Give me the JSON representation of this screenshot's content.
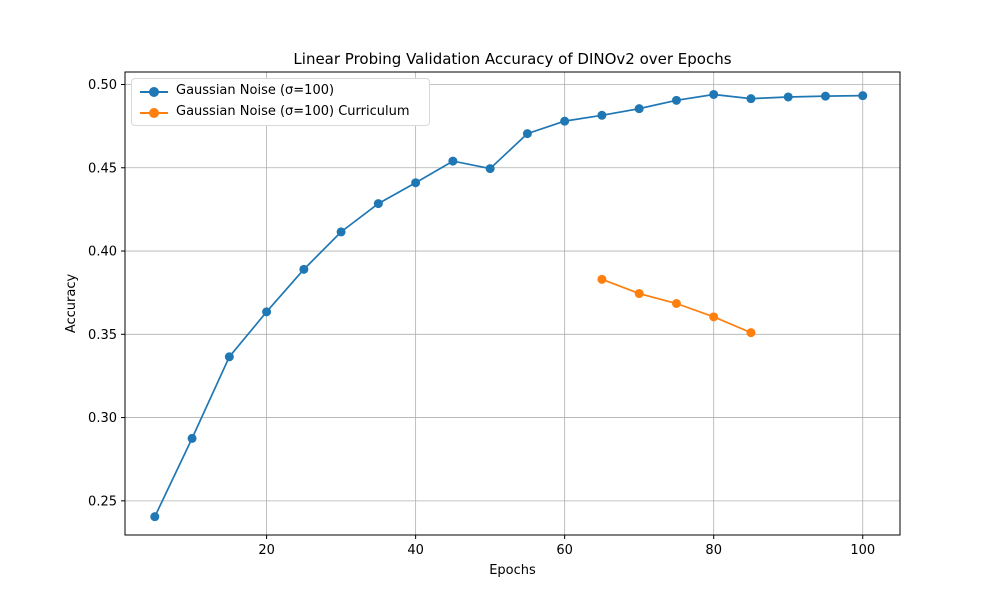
{
  "chart_data": {
    "type": "line",
    "title": "Linear Probing Validation Accuracy of DINOv2 over Epochs",
    "xlabel": "Epochs",
    "ylabel": "Accuracy",
    "xlim": [
      1,
      105
    ],
    "ylim": [
      0.2295,
      0.5075
    ],
    "xticks": [
      20,
      40,
      60,
      80,
      100
    ],
    "xtick_labels": [
      "20",
      "40",
      "60",
      "80",
      "100"
    ],
    "yticks": [
      0.25,
      0.3,
      0.35,
      0.4,
      0.45,
      0.5
    ],
    "ytick_labels": [
      "0.25",
      "0.30",
      "0.35",
      "0.40",
      "0.45",
      "0.50"
    ],
    "grid": true,
    "legend_position": "top-left",
    "series": [
      {
        "name": "Gaussian Noise (σ=100)",
        "color": "#1f77b4",
        "x": [
          5,
          10,
          15,
          20,
          25,
          30,
          35,
          40,
          45,
          50,
          55,
          60,
          65,
          70,
          75,
          80,
          85,
          90,
          95,
          100
        ],
        "y": [
          0.2405,
          0.2875,
          0.3365,
          0.3635,
          0.389,
          0.4115,
          0.4285,
          0.441,
          0.454,
          0.4495,
          0.4705,
          0.478,
          0.4815,
          0.4855,
          0.4905,
          0.494,
          0.4915,
          0.4925,
          0.493,
          0.4933
        ]
      },
      {
        "name": "Gaussian Noise (σ=100) Curriculum",
        "color": "#ff7f0e",
        "x": [
          65,
          70,
          75,
          80,
          85
        ],
        "y": [
          0.383,
          0.3745,
          0.3685,
          0.3605,
          0.351
        ]
      }
    ]
  }
}
